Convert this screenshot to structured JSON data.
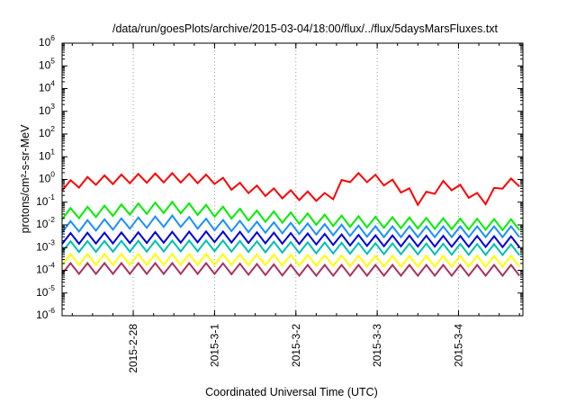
{
  "chart_data": {
    "type": "line",
    "title": "/data/run/goesPlots/archive/2015-03-04/18:00/flux/../flux/5daysMarsFluxes.txt",
    "xlabel": "Coordinated Universal Time (UTC)",
    "ylabel": "protons/cm²-s-sr-MeV",
    "y_scale": "log",
    "ylim": [
      1e-06,
      1000000.0
    ],
    "y_ticks": [
      {
        "base": "10",
        "exp": "-6",
        "value": 1e-06
      },
      {
        "base": "10",
        "exp": "-5",
        "value": 1e-05
      },
      {
        "base": "10",
        "exp": "-4",
        "value": 0.0001
      },
      {
        "base": "10",
        "exp": "-3",
        "value": 0.001
      },
      {
        "base": "10",
        "exp": "-2",
        "value": 0.01
      },
      {
        "base": "10",
        "exp": "-1",
        "value": 0.1
      },
      {
        "base": "10",
        "exp": "0",
        "value": 1
      },
      {
        "base": "10",
        "exp": "1",
        "value": 10
      },
      {
        "base": "10",
        "exp": "2",
        "value": 100
      },
      {
        "base": "10",
        "exp": "3",
        "value": 1000
      },
      {
        "base": "10",
        "exp": "4",
        "value": 10000
      },
      {
        "base": "10",
        "exp": "5",
        "value": 100000
      },
      {
        "base": "10",
        "exp": "6",
        "value": 1000000
      }
    ],
    "xlim": [
      "2015-02-27T03:00",
      "2015-03-04T19:00"
    ],
    "x_ticks": [
      {
        "label": "2015-2-28",
        "value": "2015-02-28T00:00"
      },
      {
        "label": "2015-3-1",
        "value": "2015-03-01T00:00"
      },
      {
        "label": "2015-3-2",
        "value": "2015-03-02T00:00"
      },
      {
        "label": "2015-3-3",
        "value": "2015-03-03T00:00"
      },
      {
        "label": "2015-3-4",
        "value": "2015-03-04T00:00"
      }
    ],
    "grid": true,
    "legend": "none",
    "series": [
      {
        "color": "#ff0000",
        "style": "sawtooth",
        "x": [
          "2015-02-27T03:00",
          "2015-02-27T12:00",
          "2015-02-28T00:00",
          "2015-02-28T12:00",
          "2015-03-01T00:00",
          "2015-03-01T06:00",
          "2015-03-01T12:00",
          "2015-03-01T18:00",
          "2015-03-02T00:00",
          "2015-03-02T06:00",
          "2015-03-02T10:00",
          "2015-03-02T12:00",
          "2015-03-02T15:00",
          "2015-03-02T21:00",
          "2015-03-03T03:00",
          "2015-03-03T09:00",
          "2015-03-03T12:00",
          "2015-03-03T15:00",
          "2015-03-03T18:00",
          "2015-03-03T21:00",
          "2015-03-04T00:00",
          "2015-03-04T06:00",
          "2015-03-04T09:00",
          "2015-03-04T12:00",
          "2015-03-04T19:00"
        ],
        "values": [
          0.5,
          0.9,
          1.1,
          1.2,
          1.0,
          0.5,
          0.35,
          0.25,
          0.2,
          0.18,
          0.15,
          0.3,
          1.2,
          1.2,
          0.8,
          0.3,
          0.12,
          0.2,
          0.5,
          0.6,
          0.4,
          0.15,
          0.12,
          0.6,
          0.8
        ],
        "ripple": 2.5,
        "ripple_period_hours": 5
      },
      {
        "color": "#00ee00",
        "style": "sawtooth",
        "x": [
          "2015-02-27T03:00",
          "2015-02-28T00:00",
          "2015-02-28T12:00",
          "2015-03-01T00:00",
          "2015-03-01T12:00",
          "2015-03-02T00:00",
          "2015-03-02T12:00",
          "2015-03-03T00:00",
          "2015-03-03T12:00",
          "2015-03-04T00:00",
          "2015-03-04T19:00"
        ],
        "values": [
          0.03,
          0.05,
          0.06,
          0.04,
          0.025,
          0.02,
          0.015,
          0.013,
          0.012,
          0.011,
          0.01
        ],
        "ripple": 3,
        "ripple_period_hours": 5
      },
      {
        "color": "#1a90ff",
        "style": "sawtooth",
        "x": [
          "2015-02-27T03:00",
          "2015-02-28T00:00",
          "2015-02-28T12:00",
          "2015-03-01T00:00",
          "2015-03-01T12:00",
          "2015-03-02T00:00",
          "2015-03-02T12:00",
          "2015-03-03T00:00",
          "2015-03-03T12:00",
          "2015-03-04T00:00",
          "2015-03-04T19:00"
        ],
        "values": [
          0.008,
          0.012,
          0.015,
          0.01,
          0.008,
          0.007,
          0.006,
          0.005,
          0.005,
          0.005,
          0.005
        ],
        "ripple": 3,
        "ripple_period_hours": 5
      },
      {
        "color": "#0000dd",
        "style": "sawtooth",
        "x": [
          "2015-02-27T03:00",
          "2015-03-01T00:00",
          "2015-03-02T00:00",
          "2015-03-03T00:00",
          "2015-03-04T19:00"
        ],
        "values": [
          0.0025,
          0.003,
          0.0025,
          0.002,
          0.0018
        ],
        "ripple": 3,
        "ripple_period_hours": 5
      },
      {
        "color": "#00c0b0",
        "style": "sawtooth",
        "x": [
          "2015-02-27T03:00",
          "2015-03-01T00:00",
          "2015-03-02T00:00",
          "2015-03-03T00:00",
          "2015-03-04T19:00"
        ],
        "values": [
          0.0011,
          0.0012,
          0.001,
          0.0009,
          0.0008
        ],
        "ripple": 3,
        "ripple_period_hours": 5
      },
      {
        "color": "#ffff00",
        "style": "sawtooth",
        "x": [
          "2015-02-27T03:00",
          "2015-03-01T00:00",
          "2015-03-02T00:00",
          "2015-03-03T00:00",
          "2015-03-04T19:00"
        ],
        "values": [
          0.0003,
          0.0003,
          0.00028,
          0.00025,
          0.00025
        ],
        "ripple": 3,
        "ripple_period_hours": 5
      },
      {
        "color": "#a83264",
        "style": "sawtooth",
        "x": [
          "2015-02-27T03:00",
          "2015-03-01T00:00",
          "2015-03-02T00:00",
          "2015-03-03T00:00",
          "2015-03-04T19:00"
        ],
        "values": [
          0.00012,
          0.00012,
          0.0001,
          0.0001,
          0.0001
        ],
        "ripple": 3,
        "ripple_period_hours": 5
      }
    ]
  }
}
